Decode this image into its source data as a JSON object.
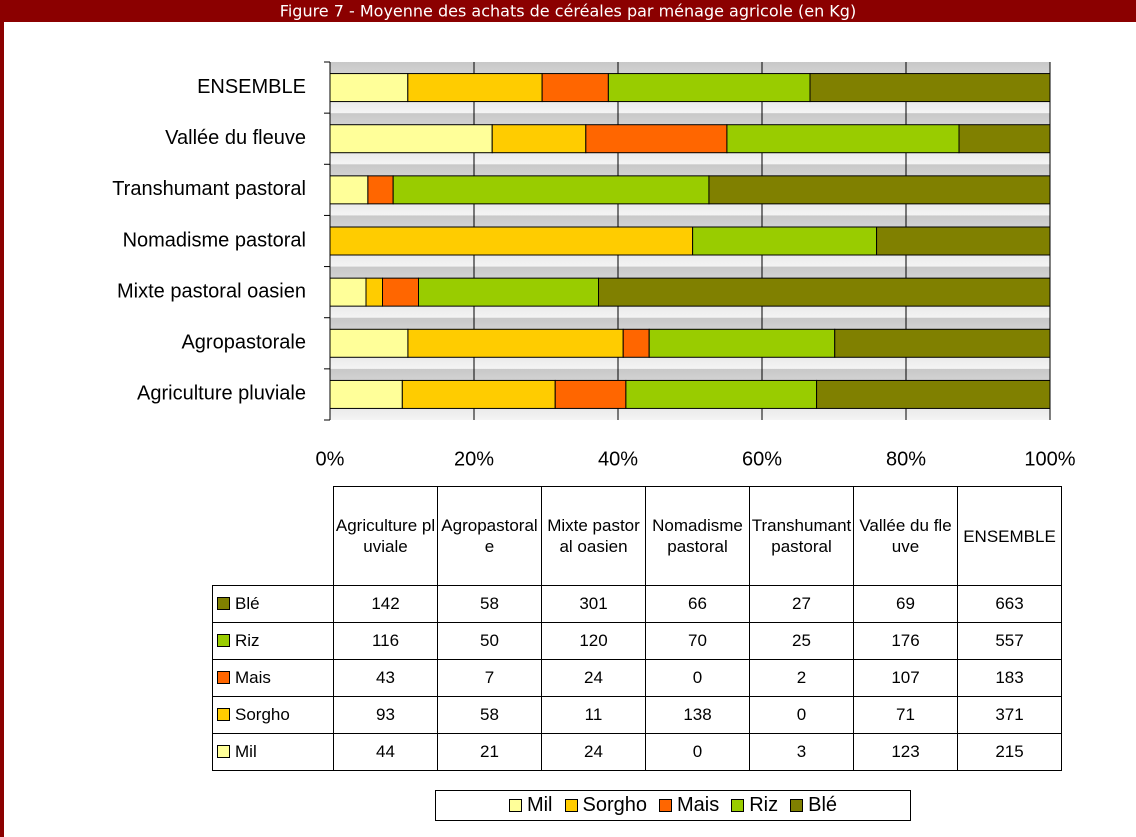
{
  "chart_data": {
    "type": "stacked_barh_percent",
    "title": "Figure 7 - Moyenne des achats de céréales par ménage agricole (en Kg)",
    "categories": [
      "Agriculture pluviale",
      "Agropastorale",
      "Mixte pastoral oasien",
      "Nomadisme pastoral",
      "Transhumant pastoral",
      "Vallée du fleuve",
      "ENSEMBLE"
    ],
    "series": [
      {
        "name": "Mil",
        "color": "#ffff99",
        "values": [
          44,
          21,
          24,
          0,
          3,
          123,
          215
        ]
      },
      {
        "name": "Sorgho",
        "color": "#ffcc00",
        "values": [
          93,
          58,
          11,
          138,
          0,
          71,
          371
        ]
      },
      {
        "name": "Mais",
        "color": "#ff6600",
        "values": [
          43,
          7,
          24,
          0,
          2,
          107,
          183
        ]
      },
      {
        "name": "Riz",
        "color": "#99cc00",
        "values": [
          116,
          50,
          120,
          70,
          25,
          176,
          557
        ]
      },
      {
        "name": "Blé",
        "color": "#808000",
        "values": [
          142,
          58,
          301,
          66,
          27,
          69,
          663
        ]
      }
    ],
    "xlim": [
      0,
      100
    ],
    "xticks": [
      {
        "value": 0,
        "label": "0%"
      },
      {
        "value": 20,
        "label": "20%"
      },
      {
        "value": 40,
        "label": "40%"
      },
      {
        "value": 60,
        "label": "60%"
      },
      {
        "value": 80,
        "label": "80%"
      },
      {
        "value": 100,
        "label": "100%"
      }
    ],
    "grid": true
  }
}
